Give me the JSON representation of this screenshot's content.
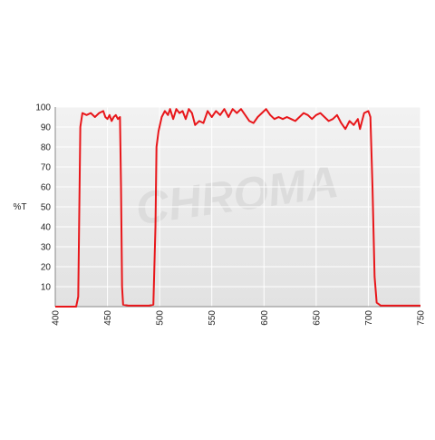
{
  "chart_data": {
    "type": "line",
    "y_label": "%T",
    "watermark": "CHROMA",
    "color": "#e8161a",
    "grid": true,
    "xlim": [
      400,
      750
    ],
    "xticks": [
      400,
      450,
      500,
      550,
      600,
      650,
      700,
      750
    ],
    "ylim": [
      0,
      100
    ],
    "yticks": [
      10,
      20,
      30,
      40,
      50,
      60,
      70,
      80,
      90,
      100
    ],
    "x": [
      400,
      420,
      422,
      424,
      426,
      430,
      434,
      438,
      442,
      446,
      448,
      450,
      452,
      454,
      456,
      458,
      460,
      462,
      463,
      464,
      465,
      470,
      490,
      494,
      496,
      497,
      499,
      502,
      505,
      508,
      510,
      513,
      516,
      519,
      522,
      525,
      528,
      531,
      534,
      538,
      542,
      546,
      550,
      554,
      558,
      562,
      566,
      570,
      574,
      578,
      582,
      586,
      590,
      594,
      598,
      602,
      606,
      610,
      614,
      618,
      622,
      626,
      630,
      634,
      638,
      642,
      646,
      650,
      654,
      658,
      662,
      666,
      670,
      674,
      678,
      682,
      686,
      690,
      692,
      694,
      696,
      700,
      702,
      704,
      706,
      708,
      712,
      750
    ],
    "values": [
      0,
      0,
      5,
      90,
      97,
      96,
      97,
      95,
      97,
      98,
      95,
      94,
      96,
      93,
      95,
      96,
      94,
      95,
      60,
      10,
      1,
      0.5,
      0.5,
      1,
      40,
      80,
      88,
      95,
      98,
      96,
      99,
      94,
      99,
      97,
      98,
      94,
      99,
      97,
      91,
      93,
      92,
      98,
      95,
      98,
      96,
      99,
      95,
      99,
      97,
      99,
      96,
      93,
      92,
      95,
      97,
      99,
      96,
      94,
      95,
      94,
      95,
      94,
      93,
      95,
      97,
      96,
      94,
      96,
      97,
      95,
      93,
      94,
      96,
      92,
      89,
      93,
      91,
      94,
      89,
      93,
      97,
      98,
      95,
      60,
      15,
      2,
      0.5,
      0.5
    ]
  }
}
